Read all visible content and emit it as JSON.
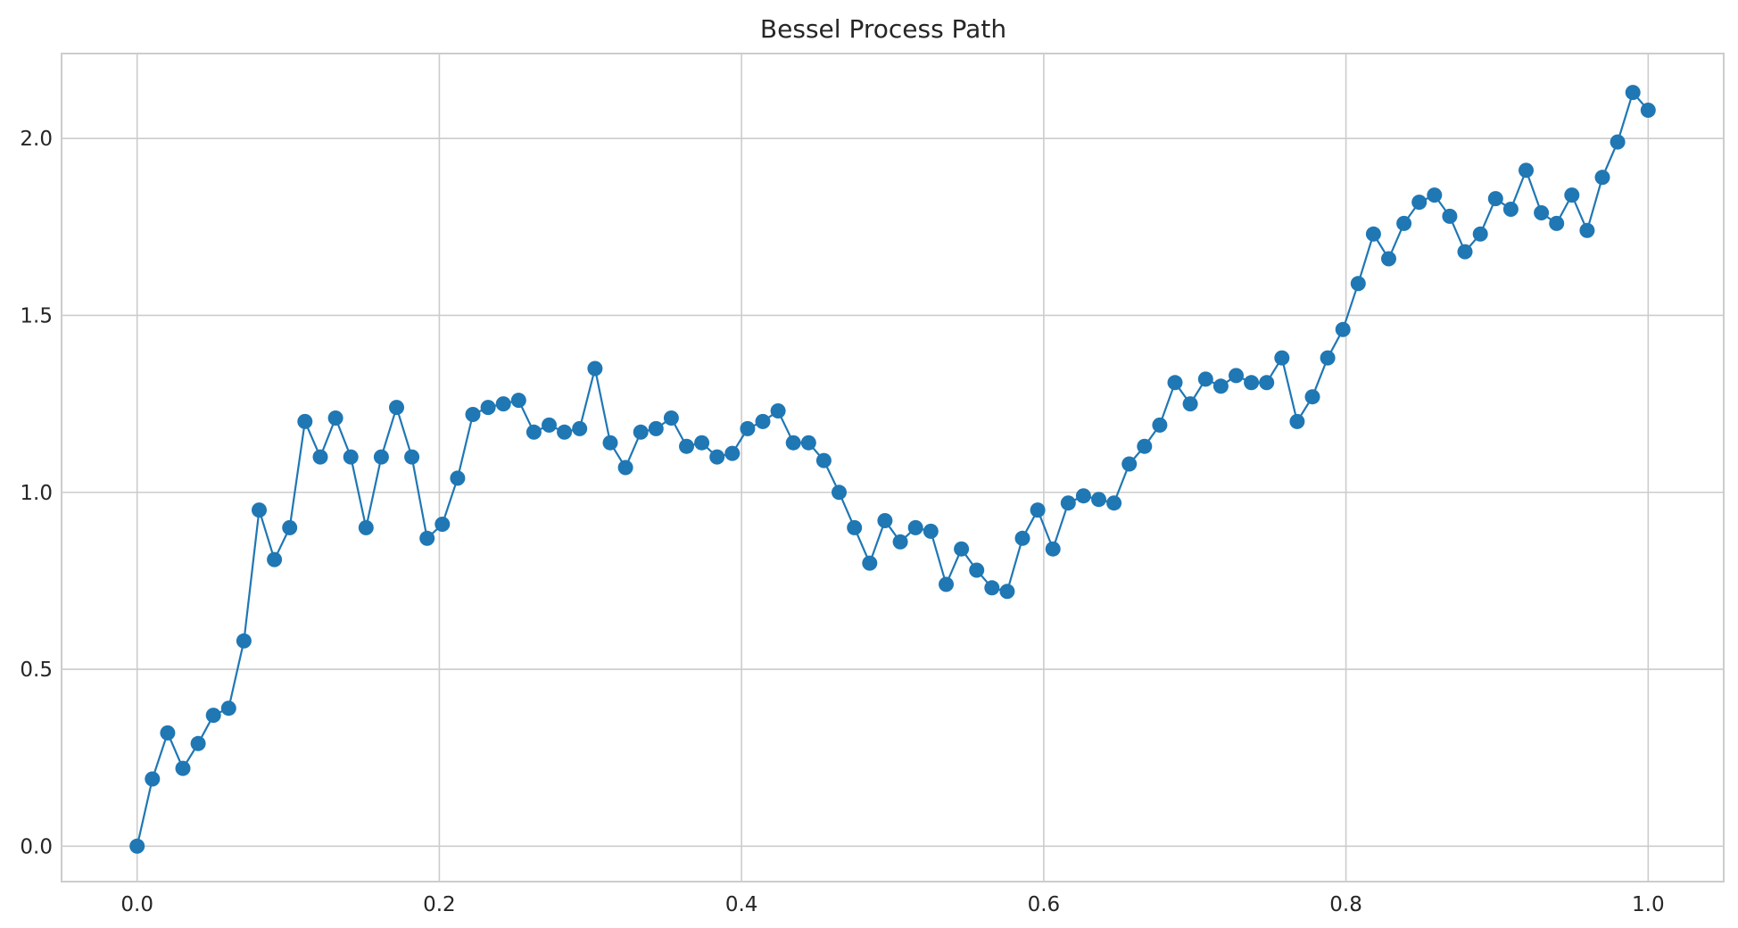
{
  "chart_data": {
    "type": "line",
    "title": "Bessel Process Path",
    "xlabel": "",
    "ylabel": "",
    "xlim": [
      -0.05,
      1.05
    ],
    "ylim": [
      -0.1,
      2.24
    ],
    "grid": true,
    "xticks": [
      0.0,
      0.2,
      0.4,
      0.6,
      0.8,
      1.0
    ],
    "xtick_labels": [
      "0.0",
      "0.2",
      "0.4",
      "0.6",
      "0.8",
      "1.0"
    ],
    "yticks": [
      0.0,
      0.5,
      1.0,
      1.5,
      2.0
    ],
    "ytick_labels": [
      "0.0",
      "0.5",
      "1.0",
      "1.5",
      "2.0"
    ],
    "series": [
      {
        "color": "#1f77b4",
        "marker": "circle",
        "x": [
          0.0,
          0.0101,
          0.0202,
          0.0303,
          0.0404,
          0.0505,
          0.0606,
          0.0707,
          0.0808,
          0.0909,
          0.101,
          0.1111,
          0.1212,
          0.1313,
          0.1414,
          0.1515,
          0.1616,
          0.1717,
          0.1818,
          0.1919,
          0.202,
          0.2121,
          0.2222,
          0.2323,
          0.2424,
          0.2525,
          0.2626,
          0.2727,
          0.2828,
          0.2929,
          0.303,
          0.3131,
          0.3232,
          0.3333,
          0.3434,
          0.3535,
          0.3636,
          0.3737,
          0.3838,
          0.3939,
          0.404,
          0.4141,
          0.4242,
          0.4343,
          0.4444,
          0.4545,
          0.4646,
          0.4747,
          0.4848,
          0.4949,
          0.5051,
          0.5152,
          0.5253,
          0.5354,
          0.5455,
          0.5556,
          0.5657,
          0.5758,
          0.5859,
          0.596,
          0.6061,
          0.6162,
          0.6263,
          0.6364,
          0.6465,
          0.6566,
          0.6667,
          0.6768,
          0.6869,
          0.697,
          0.7071,
          0.7172,
          0.7273,
          0.7374,
          0.7475,
          0.7576,
          0.7677,
          0.7778,
          0.7879,
          0.798,
          0.8081,
          0.8182,
          0.8283,
          0.8384,
          0.8485,
          0.8586,
          0.8687,
          0.8788,
          0.8889,
          0.899,
          0.9091,
          0.9192,
          0.9293,
          0.9394,
          0.9495,
          0.9596,
          0.9697,
          0.9798,
          0.9899,
          1.0
        ],
        "y": [
          0.0,
          0.19,
          0.32,
          0.22,
          0.29,
          0.37,
          0.39,
          0.58,
          0.95,
          0.81,
          0.9,
          1.2,
          1.1,
          1.21,
          1.1,
          0.9,
          1.1,
          1.24,
          1.1,
          0.87,
          0.91,
          1.04,
          1.22,
          1.24,
          1.25,
          1.26,
          1.17,
          1.19,
          1.17,
          1.18,
          1.35,
          1.14,
          1.07,
          1.17,
          1.18,
          1.21,
          1.13,
          1.14,
          1.1,
          1.11,
          1.18,
          1.2,
          1.23,
          1.14,
          1.14,
          1.09,
          1.0,
          0.9,
          0.8,
          0.92,
          0.86,
          0.9,
          0.89,
          0.74,
          0.84,
          0.78,
          0.73,
          0.72,
          0.87,
          0.95,
          0.84,
          0.97,
          0.99,
          0.98,
          0.97,
          1.08,
          1.13,
          1.19,
          1.31,
          1.25,
          1.32,
          1.3,
          1.33,
          1.31,
          1.31,
          1.38,
          1.2,
          1.27,
          1.38,
          1.46,
          1.59,
          1.73,
          1.66,
          1.76,
          1.82,
          1.84,
          1.78,
          1.68,
          1.73,
          1.83,
          1.8,
          1.91,
          1.79,
          1.76,
          1.84,
          1.74,
          1.89,
          1.99,
          2.13,
          2.08
        ]
      }
    ]
  }
}
